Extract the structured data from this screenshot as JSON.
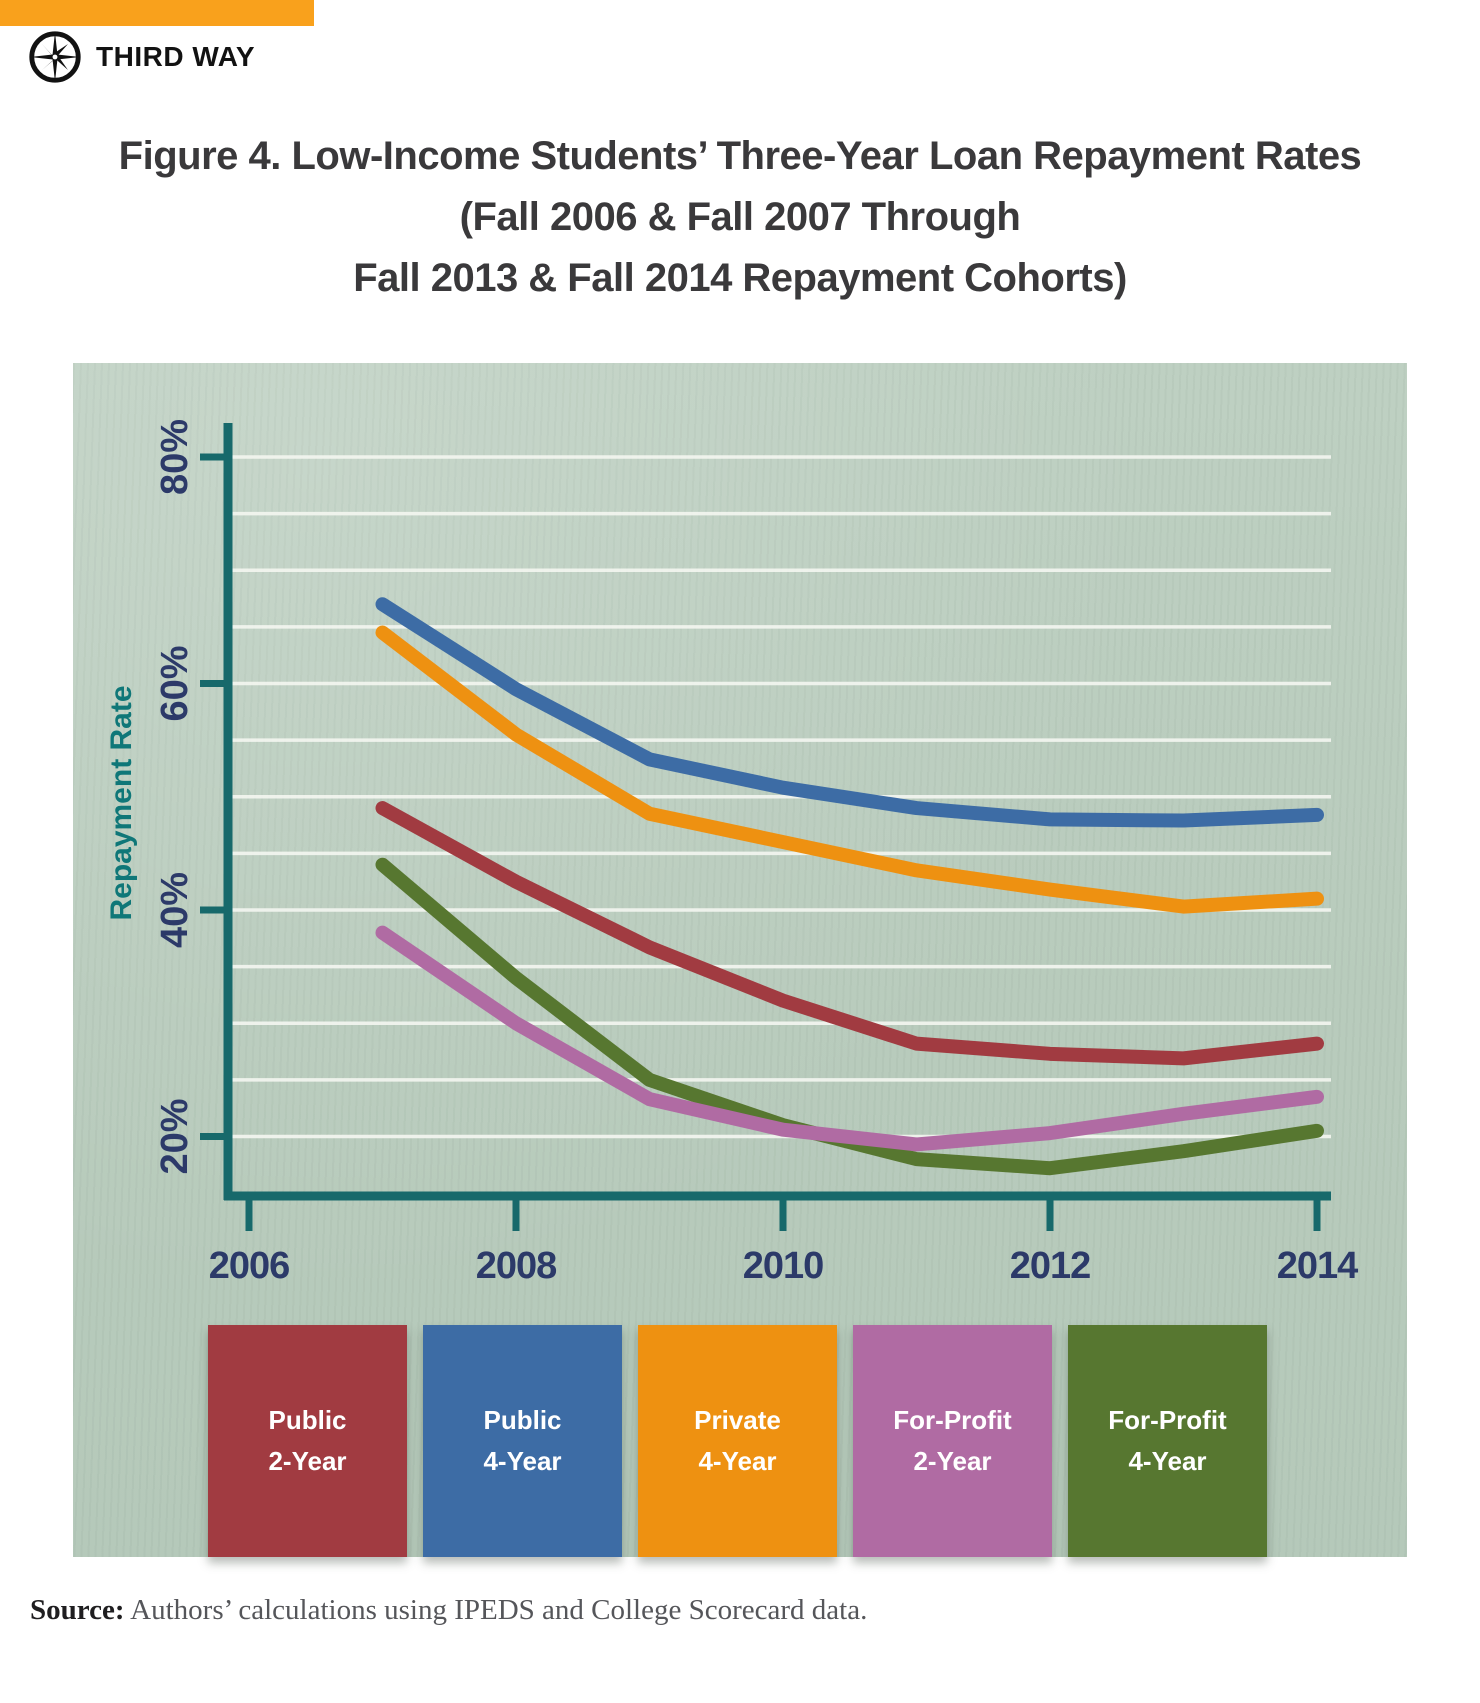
{
  "header": {
    "accent_bar_color": "#F9A11C",
    "brand": "THIRD WAY"
  },
  "title": {
    "line1": "Figure 4. Low-Income Students’ Three-Year Loan Repayment Rates",
    "line2": "(Fall 2006 & Fall 2007 Through",
    "line3": "Fall 2013 & Fall 2014 Repayment Cohorts)"
  },
  "chart_data": {
    "type": "line",
    "title": "Figure 4. Low-Income Students’ Three-Year Loan Repayment Rates (Fall 2006 & Fall 2007 Through Fall 2013 & Fall 2014 Repayment Cohorts)",
    "xlabel": "",
    "ylabel": "Repayment Rate",
    "x": [
      2007,
      2008,
      2009,
      2010,
      2011,
      2012,
      2013,
      2014
    ],
    "x_tick_labels": [
      "2006",
      "2008",
      "2010",
      "2012",
      "2014"
    ],
    "x_tick_values": [
      2006,
      2008,
      2010,
      2012,
      2014
    ],
    "y_tick_labels": [
      "20%",
      "40%",
      "60%",
      "80%"
    ],
    "y_tick_values": [
      20,
      40,
      60,
      80
    ],
    "xlim": [
      2006,
      2014.1
    ],
    "ylim": [
      14.5,
      83
    ],
    "grid": "horizontal white gridlines every 5% from 20% to 80%",
    "legend_position": "bottom",
    "axis_color": "#17696B",
    "tick_label_color": "#2C3A69",
    "series": [
      {
        "name": "Public 2-Year",
        "color": "#A13B41",
        "values": [
          49.0,
          42.5,
          36.7,
          32.0,
          28.2,
          27.3,
          26.9,
          28.2
        ]
      },
      {
        "name": "Public 4-Year",
        "color": "#3D6CA5",
        "values": [
          67.0,
          59.5,
          53.3,
          50.8,
          49.0,
          48.0,
          47.9,
          48.4
        ]
      },
      {
        "name": "Private 4-Year",
        "color": "#EE9111",
        "values": [
          64.5,
          55.5,
          48.5,
          46.0,
          43.5,
          41.8,
          40.3,
          41.0
        ]
      },
      {
        "name": "For-Profit 2-Year",
        "color": "#B06BA3",
        "values": [
          38.0,
          30.0,
          23.3,
          20.6,
          19.3,
          20.3,
          22.0,
          23.5
        ]
      },
      {
        "name": "For-Profit 4-Year",
        "color": "#577730",
        "values": [
          44.0,
          34.0,
          25.0,
          21.0,
          18.0,
          17.2,
          18.7,
          20.5
        ]
      }
    ]
  },
  "legend": {
    "items": [
      {
        "line1": "Public",
        "line2": "2-Year",
        "color": "#A13B41"
      },
      {
        "line1": "Public",
        "line2": "4-Year",
        "color": "#3D6CA5"
      },
      {
        "line1": "Private",
        "line2": "4-Year",
        "color": "#EE9111"
      },
      {
        "line1": "For-Profit",
        "line2": "2-Year",
        "color": "#B06BA3"
      },
      {
        "line1": "For-Profit",
        "line2": "4-Year",
        "color": "#577730"
      }
    ]
  },
  "source": {
    "label": "Source:",
    "text": " Authors’ calculations using IPEDS and College Scorecard data."
  }
}
